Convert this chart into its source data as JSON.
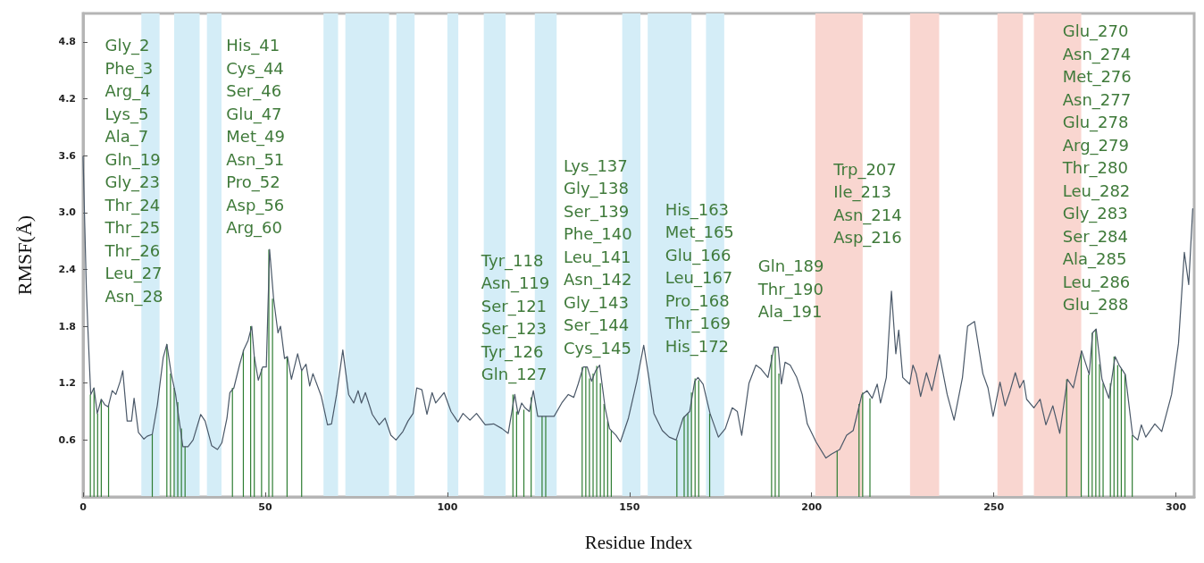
{
  "chart_data": {
    "type": "line",
    "xlabel": "Residue Index",
    "ylabel": "RMSF(Å)",
    "xlim": [
      0,
      305
    ],
    "xticks": [
      0,
      50,
      100,
      150,
      200,
      250,
      300
    ],
    "ylim": [
      0,
      5.1
    ],
    "yticks": [
      0.6,
      1.2,
      1.8,
      2.4,
      {
        "value": 3,
        "label": "3.0"
      },
      3.6,
      4.2,
      4.8
    ],
    "grid": false,
    "marker": "none",
    "line_style": "solid",
    "series": [
      {
        "color": "#4a5868",
        "x": [
          0,
          0.9,
          1.3,
          2.1,
          3,
          3.9,
          5,
          6,
          6.9,
          8,
          9,
          10.2,
          10.9,
          12.1,
          13.3,
          14,
          15.2,
          16.7,
          17.6,
          19,
          20.4,
          22,
          23,
          24.2,
          25.4,
          26.7,
          27.4,
          28.8,
          30.2,
          32.3,
          33.5,
          35.3,
          36.9,
          38.1,
          39.5,
          40.3,
          41.4,
          43,
          44.1,
          45.3,
          46.3,
          47,
          48.1,
          49.3,
          50.3,
          51.2,
          52.3,
          53.5,
          54.2,
          55.3,
          56.1,
          57.2,
          58.9,
          60,
          61.2,
          62.2,
          63.1,
          65.4,
          67.1,
          68.2,
          69.6,
          71.3,
          72.9,
          74.3,
          75.5,
          76.4,
          77.5,
          79.4,
          81.3,
          82.9,
          84.5,
          85.9,
          87.8,
          89.2,
          90.6,
          91.6,
          93,
          94.4,
          95.8,
          96.8,
          99.1,
          101,
          102.9,
          104.3,
          106.2,
          108,
          110.4,
          112.7,
          115,
          116.7,
          118.5,
          119.4,
          120.4,
          121.3,
          122.5,
          123.6,
          124.8,
          127.2,
          129.3,
          131.4,
          133.2,
          134.7,
          135.9,
          137.3,
          138.4,
          139.6,
          140.7,
          141.8,
          143.3,
          144.5,
          146.3,
          147.5,
          149.7,
          152,
          153.9,
          155.3,
          156.7,
          159,
          160.9,
          162.8,
          164.7,
          166.5,
          167.9,
          168.8,
          170.2,
          172.1,
          174.4,
          176.3,
          178.2,
          179.6,
          180.8,
          182.8,
          184.7,
          186.1,
          188,
          189.7,
          190.8,
          191.7,
          192.7,
          194.1,
          195.9,
          197.4,
          198.8,
          201.2,
          203.9,
          205.4,
          207.7,
          209.6,
          211.4,
          213.8,
          215.2,
          216.6,
          218,
          218.9,
          220.5,
          221.9,
          223.1,
          223.9,
          225,
          226.9,
          227.8,
          228.7,
          229.9,
          231.5,
          233,
          235.1,
          237.2,
          239.1,
          241.4,
          242.8,
          244.7,
          247,
          248.4,
          249.8,
          251.7,
          253.1,
          254.5,
          255.9,
          257.1,
          258.2,
          259,
          261,
          262.7,
          264.3,
          266.2,
          268.1,
          270.2,
          271.8,
          274.1,
          276.2,
          277.1,
          278.1,
          279.7,
          281.6,
          283.3,
          284.4,
          286.1,
          288.1,
          289.5,
          290.5,
          291.7,
          294.2,
          296.1,
          298.8,
          300.7,
          302.3,
          303.5,
          304.6
        ],
        "values": [
          3.59,
          2.2,
          1.8,
          1.08,
          1.15,
          0.88,
          1.03,
          0.97,
          0.95,
          1.12,
          1.08,
          1.22,
          1.33,
          0.8,
          0.8,
          1.04,
          0.68,
          0.61,
          0.64,
          0.66,
          0.97,
          1.47,
          1.61,
          1.3,
          1.08,
          0.72,
          0.53,
          0.53,
          0.6,
          0.87,
          0.8,
          0.54,
          0.5,
          0.57,
          0.83,
          1.1,
          1.15,
          1.4,
          1.55,
          1.65,
          1.8,
          1.48,
          1.23,
          1.37,
          1.37,
          2.61,
          2.09,
          1.73,
          1.8,
          1.46,
          1.48,
          1.24,
          1.51,
          1.33,
          1.4,
          1.17,
          1.3,
          1.06,
          0.76,
          0.77,
          1.08,
          1.55,
          1.08,
          0.99,
          1.12,
          0.99,
          1.1,
          0.87,
          0.76,
          0.83,
          0.65,
          0.6,
          0.69,
          0.8,
          0.88,
          1.15,
          1.13,
          0.87,
          1.1,
          0.99,
          1.1,
          0.9,
          0.79,
          0.88,
          0.81,
          0.88,
          0.76,
          0.77,
          0.72,
          0.67,
          1.08,
          0.87,
          0.99,
          0.94,
          0.9,
          1.12,
          0.85,
          0.85,
          0.85,
          0.99,
          1.08,
          1.05,
          1.19,
          1.37,
          1.37,
          1.22,
          1.33,
          1.39,
          0.94,
          0.72,
          0.65,
          0.58,
          0.83,
          1.22,
          1.6,
          1.26,
          0.88,
          0.7,
          0.63,
          0.6,
          0.83,
          0.9,
          1.22,
          1.26,
          1.19,
          0.88,
          0.63,
          0.72,
          0.94,
          0.9,
          0.65,
          1.2,
          1.39,
          1.35,
          1.26,
          1.58,
          1.58,
          1.19,
          1.42,
          1.39,
          1.26,
          1.08,
          0.77,
          0.58,
          0.41,
          0.45,
          0.5,
          0.65,
          0.7,
          1.08,
          1.12,
          1.04,
          1.19,
          0.99,
          1.26,
          2.17,
          1.51,
          1.76,
          1.26,
          1.19,
          1.39,
          1.3,
          1.06,
          1.31,
          1.12,
          1.5,
          1.08,
          0.81,
          1.26,
          1.8,
          1.85,
          1.3,
          1.15,
          0.85,
          1.21,
          0.96,
          1.12,
          1.31,
          1.15,
          1.23,
          1.03,
          0.94,
          1.03,
          0.76,
          0.96,
          0.67,
          1.24,
          1.15,
          1.54,
          1.29,
          1.73,
          1.77,
          1.24,
          1.04,
          1.48,
          1.39,
          1.29,
          0.65,
          0.6,
          0.76,
          0.63,
          0.77,
          0.69,
          1.08,
          1.62,
          2.58,
          2.24,
          3.04
        ]
      },
      {
        "type": "bar",
        "color": "#2e7d32",
        "x": [
          2,
          3,
          4,
          5,
          7,
          19,
          23,
          24,
          25,
          26,
          27,
          28,
          41,
          44,
          46,
          47,
          49,
          51,
          52,
          56,
          60,
          118,
          119,
          121,
          123,
          126,
          127,
          137,
          138,
          139,
          140,
          141,
          142,
          143,
          144,
          145,
          163,
          165,
          166,
          167,
          168,
          169,
          172,
          189,
          190,
          191,
          207,
          213,
          214,
          216,
          270,
          274,
          276,
          277,
          278,
          279,
          280,
          282,
          283,
          284,
          285,
          286,
          288
        ],
        "values": [
          1.08,
          1.15,
          0.88,
          1.03,
          0.97,
          0.66,
          1.61,
          1.3,
          1.15,
          1.0,
          0.72,
          0.53,
          1.15,
          1.55,
          1.8,
          1.48,
          1.35,
          2.61,
          2.09,
          1.48,
          1.33,
          1.08,
          0.9,
          0.92,
          1.05,
          0.85,
          0.85,
          1.37,
          1.37,
          1.25,
          1.3,
          1.38,
          1.2,
          0.98,
          0.8,
          0.7,
          0.6,
          0.85,
          0.88,
          1.1,
          1.25,
          1.23,
          0.88,
          1.5,
          1.58,
          1.3,
          0.49,
          0.98,
          1.1,
          1.04,
          1.24,
          1.54,
          1.29,
          1.73,
          1.77,
          1.4,
          1.2,
          1.2,
          1.48,
          1.39,
          1.35,
          1.29,
          0.65
        ]
      }
    ],
    "bands": [
      {
        "axis": "x",
        "from": 16,
        "to": 21,
        "color": "#d4edf7"
      },
      {
        "axis": "x",
        "from": 25,
        "to": 32,
        "color": "#d4edf7"
      },
      {
        "axis": "x",
        "from": 34,
        "to": 38,
        "color": "#d4edf7"
      },
      {
        "axis": "x",
        "from": 66,
        "to": 70,
        "color": "#d4edf7"
      },
      {
        "axis": "x",
        "from": 72,
        "to": 84,
        "color": "#d4edf7"
      },
      {
        "axis": "x",
        "from": 86,
        "to": 91,
        "color": "#d4edf7"
      },
      {
        "axis": "x",
        "from": 100,
        "to": 103,
        "color": "#d4edf7"
      },
      {
        "axis": "x",
        "from": 110,
        "to": 116,
        "color": "#d4edf7"
      },
      {
        "axis": "x",
        "from": 124,
        "to": 130,
        "color": "#d4edf7"
      },
      {
        "axis": "x",
        "from": 148,
        "to": 153,
        "color": "#d4edf7"
      },
      {
        "axis": "x",
        "from": 155,
        "to": 167,
        "color": "#d4edf7"
      },
      {
        "axis": "x",
        "from": 171,
        "to": 176,
        "color": "#d4edf7"
      },
      {
        "axis": "x",
        "from": 201,
        "to": 214,
        "color": "#f9d6d0"
      },
      {
        "axis": "x",
        "from": 227,
        "to": 235,
        "color": "#f9d6d0"
      },
      {
        "axis": "x",
        "from": 251,
        "to": 258,
        "color": "#f9d6d0"
      },
      {
        "axis": "x",
        "from": 261,
        "to": 274,
        "color": "#f9d6d0"
      }
    ],
    "annotations": [
      "Gly_2",
      "Phe_3",
      "Arg_4",
      "Lys_5",
      "Ala_7",
      "Gln_19",
      "Gly_23",
      "Thr_24",
      "Thr_25",
      "Thr_26",
      "Leu_27",
      "Asn_28",
      "His_41",
      "Cys_44",
      "Ser_46",
      "Glu_47",
      "Met_49",
      "Asn_51",
      "Pro_52",
      "Asp_56",
      "Arg_60",
      "Tyr_118",
      "Asn_119",
      "Ser_121",
      "Ser_123",
      "Tyr_126",
      "Gln_127",
      "Lys_137",
      "Gly_138",
      "Ser_139",
      "Phe_140",
      "Leu_141",
      "Asn_142",
      "Gly_143",
      "Ser_144",
      "Cys_145",
      "His_163",
      "Met_165",
      "Glu_166",
      "Leu_167",
      "Pro_168",
      "Thr_169",
      "His_172",
      "Gln_189",
      "Thr_190",
      "Ala_191",
      "Trp_207",
      "Ile_213",
      "Asn_214",
      "Asp_216",
      "Glu_270",
      "Asn_274",
      "Met_276",
      "Asn_277",
      "Glu_278",
      "Arg_279",
      "Thr_280",
      "Leu_282",
      "Gly_283",
      "Ser_284",
      "Ala_285",
      "Leu_286",
      "Glu_288"
    ]
  }
}
